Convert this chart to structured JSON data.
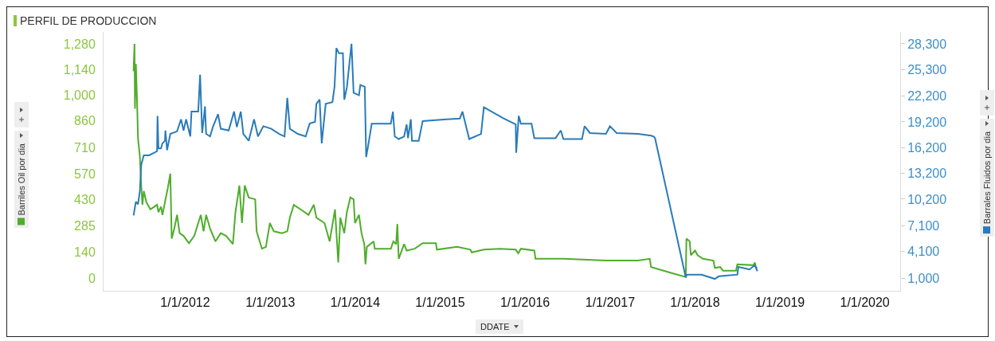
{
  "chart_data": {
    "type": "line",
    "title": "PERFIL DE PRODUCCION",
    "xlabel": "DDATE",
    "ylabel": "Barriles Oil por dia",
    "y2label": "Barrales Fluidos por dia",
    "xlim": [
      "2011-01-15",
      "2020-06-01"
    ],
    "xticks": [
      {
        "value": "2012-01-01",
        "label": "1/1/2012"
      },
      {
        "value": "2013-01-01",
        "label": "1/1/2013"
      },
      {
        "value": "2014-01-01",
        "label": "1/1/2014"
      },
      {
        "value": "2015-01-01",
        "label": "1/1/2015"
      },
      {
        "value": "2016-01-01",
        "label": "1/1/2016"
      },
      {
        "value": "2017-01-01",
        "label": "1/1/2017"
      },
      {
        "value": "2018-01-01",
        "label": "1/1/2018"
      },
      {
        "value": "2019-01-01",
        "label": "1/1/2019"
      },
      {
        "value": "2020-01-01",
        "label": "1/1/2020"
      }
    ],
    "ylim": [
      -70,
      1345
    ],
    "yticks": [
      0,
      140,
      285,
      430,
      570,
      710,
      860,
      {
        "value": 1000,
        "label": "1,000"
      },
      {
        "value": 1140,
        "label": "1,140"
      },
      {
        "value": 1280,
        "label": "1,280"
      }
    ],
    "y2lim": [
      -486,
      29690
    ],
    "y2ticks": [
      {
        "value": 1000,
        "label": "1,000"
      },
      {
        "value": 4100,
        "label": "4,100"
      },
      {
        "value": 7100,
        "label": "7,100"
      },
      {
        "value": 10200,
        "label": "10,200"
      },
      {
        "value": 13200,
        "label": "13,200"
      },
      {
        "value": 16200,
        "label": "16,200"
      },
      {
        "value": 19200,
        "label": "19,200"
      },
      {
        "value": 22200,
        "label": "22,200"
      },
      {
        "value": 25300,
        "label": "25,300"
      },
      {
        "value": 28300,
        "label": "28,300"
      }
    ],
    "series": [
      {
        "color": "#4fad2c",
        "x": [
          "2011-05-24",
          "2011-05-28",
          "2011-05-30",
          "2011-06-03",
          "2011-06-08",
          "2011-06-12",
          "2011-06-20",
          "2011-06-26",
          "2011-07-01",
          "2011-07-07",
          "2011-07-18",
          "2011-08-04",
          "2011-09-02",
          "2011-09-08",
          "2011-09-19",
          "2011-09-25",
          "2011-10-18",
          "2011-10-29",
          "2011-11-04",
          "2011-11-15",
          "2011-11-27",
          "2011-12-08",
          "2011-12-25",
          "2012-01-17",
          "2012-02-09",
          "2012-03-08",
          "2012-03-20",
          "2012-03-31",
          "2012-04-17",
          "2012-05-10",
          "2012-06-02",
          "2012-06-25",
          "2012-07-24",
          "2012-08-04",
          "2012-08-21",
          "2012-09-01",
          "2012-09-13",
          "2012-09-30",
          "2012-10-28",
          "2012-11-03",
          "2012-11-26",
          "2012-12-13",
          "2012-12-30",
          "2013-01-16",
          "2013-02-20",
          "2013-03-15",
          "2013-03-26",
          "2013-04-12",
          "2013-05-11",
          "2013-06-14",
          "2013-07-07",
          "2013-07-18",
          "2013-08-22",
          "2013-09-13",
          "2013-10-06",
          "2013-10-20",
          "2013-10-29",
          "2013-11-15",
          "2013-11-26",
          "2013-12-11",
          "2013-12-25",
          "2013-12-31",
          "2014-01-17",
          "2014-01-28",
          "2014-02-09",
          "2014-02-14",
          "2014-02-20",
          "2014-03-21",
          "2014-03-26",
          "2014-06-03",
          "2014-06-14",
          "2014-06-26",
          "2014-07-01",
          "2014-07-07",
          "2014-07-30",
          "2014-08-10",
          "2014-09-14",
          "2014-10-18",
          "2014-12-14",
          "2014-12-18",
          "2015-03-15",
          "2015-05-11",
          "2015-05-17",
          "2015-07-08",
          "2015-09-14",
          "2015-11-22",
          "2015-12-03",
          "2015-12-14",
          "2016-02-10",
          "2016-02-15",
          "2016-06-14",
          "2016-12-14",
          "2017-04-30",
          "2017-06-20",
          "2017-06-26",
          "2017-09-14",
          "2017-11-22",
          "2017-11-25",
          "2017-12-09",
          "2017-12-14",
          "2018-01-01",
          "2018-01-12",
          "2018-02-04",
          "2018-03-21",
          "2018-03-27",
          "2018-04-19",
          "2018-05-01",
          "2018-06-26",
          "2018-07-02",
          "2018-09-09",
          "2018-09-15",
          "2018-09-20",
          "2018-09-26"
        ],
        "values": [
          1130,
          1280,
          925,
          1170,
          970,
          765,
          665,
          505,
          400,
          475,
          415,
          375,
          400,
          360,
          390,
          345,
          490,
          570,
          215,
          270,
          345,
          245,
          230,
          190,
          230,
          345,
          255,
          345,
          270,
          200,
          245,
          230,
          185,
          360,
          505,
          300,
          505,
          440,
          430,
          255,
          160,
          170,
          300,
          255,
          245,
          255,
          330,
          400,
          375,
          345,
          400,
          330,
          300,
          200,
          375,
          85,
          330,
          245,
          360,
          440,
          430,
          300,
          345,
          245,
          185,
          75,
          170,
          200,
          160,
          160,
          200,
          185,
          295,
          105,
          185,
          150,
          160,
          190,
          190,
          155,
          170,
          155,
          140,
          155,
          160,
          155,
          135,
          160,
          150,
          105,
          105,
          95,
          95,
          105,
          60,
          30,
          5,
          215,
          200,
          125,
          150,
          125,
          105,
          95,
          55,
          60,
          40,
          40,
          75,
          70,
          85,
          55,
          55
        ]
      },
      {
        "color": "#2a7bb9",
        "axis": "y2",
        "x": [
          "2011-05-24",
          "2011-06-03",
          "2011-06-12",
          "2011-06-20",
          "2011-06-26",
          "2011-07-07",
          "2011-07-30",
          "2011-08-21",
          "2011-09-02",
          "2011-09-04",
          "2011-09-08",
          "2011-09-19",
          "2011-09-25",
          "2011-10-06",
          "2011-10-08",
          "2011-10-15",
          "2011-10-29",
          "2011-11-27",
          "2011-12-14",
          "2011-12-25",
          "2012-01-05",
          "2012-01-23",
          "2012-01-28",
          "2012-02-26",
          "2012-03-05",
          "2012-03-14",
          "2012-03-26",
          "2012-03-31",
          "2012-04-17",
          "2012-04-29",
          "2012-05-21",
          "2012-06-02",
          "2012-07-06",
          "2012-07-29",
          "2012-08-10",
          "2012-08-27",
          "2012-09-07",
          "2012-09-30",
          "2012-10-23",
          "2012-11-09",
          "2012-12-02",
          "2013-01-05",
          "2013-02-08",
          "2013-03-03",
          "2013-03-15",
          "2013-03-26",
          "2013-04-29",
          "2013-06-02",
          "2013-06-19",
          "2013-07-12",
          "2013-07-18",
          "2013-08-01",
          "2013-08-10",
          "2013-08-27",
          "2013-09-25",
          "2013-10-04",
          "2013-10-12",
          "2013-10-23",
          "2013-11-09",
          "2013-11-15",
          "2013-11-26",
          "2013-12-16",
          "2013-12-25",
          "2014-01-17",
          "2014-01-23",
          "2014-02-11",
          "2014-02-17",
          "2014-02-26",
          "2014-03-13",
          "2014-06-03",
          "2014-06-12",
          "2014-06-20",
          "2014-07-07",
          "2014-07-30",
          "2014-08-10",
          "2014-08-16",
          "2014-08-28",
          "2014-09-02",
          "2014-10-01",
          "2014-10-18",
          "2015-01-29",
          "2015-03-27",
          "2015-04-07",
          "2015-05-06",
          "2015-06-26",
          "2015-07-08",
          "2015-10-01",
          "2015-11-22",
          "2015-11-24",
          "2015-12-05",
          "2015-12-14",
          "2016-01-29",
          "2016-02-10",
          "2016-05-11",
          "2016-06-03",
          "2016-06-14",
          "2016-09-02",
          "2016-09-13",
          "2016-10-06",
          "2016-12-14",
          "2016-12-31",
          "2017-01-29",
          "2017-04-30",
          "2017-06-26",
          "2017-07-07",
          "2017-07-13",
          "2017-11-22",
          "2017-11-27",
          "2018-01-29",
          "2018-03-27",
          "2018-04-13",
          "2018-07-02",
          "2018-07-06",
          "2018-08-23",
          "2018-09-15",
          "2018-09-26"
        ],
        "values": [
          8300,
          9900,
          9600,
          11100,
          14200,
          15300,
          15300,
          15600,
          15800,
          19900,
          16100,
          16100,
          16700,
          17000,
          18200,
          15900,
          17800,
          18100,
          19500,
          18200,
          19500,
          17500,
          20400,
          20400,
          24700,
          17900,
          21000,
          17800,
          17500,
          18600,
          20100,
          18400,
          18200,
          20400,
          18600,
          20400,
          17800,
          17000,
          19500,
          17500,
          18700,
          18400,
          17800,
          17500,
          22000,
          18400,
          17800,
          17500,
          19000,
          19200,
          21300,
          21800,
          16700,
          21300,
          21500,
          23300,
          27800,
          27200,
          27200,
          21800,
          23200,
          28300,
          22600,
          22300,
          23500,
          23300,
          15100,
          16500,
          19000,
          19000,
          20400,
          17500,
          17200,
          17500,
          18900,
          17300,
          19500,
          17000,
          17000,
          19300,
          19500,
          19600,
          20400,
          17200,
          17800,
          20900,
          19600,
          18900,
          15600,
          19900,
          19000,
          19000,
          17300,
          17300,
          18200,
          17200,
          17200,
          18700,
          17900,
          17800,
          18700,
          17900,
          17800,
          17600,
          17500,
          17300,
          1100,
          1400,
          1400,
          900,
          1200,
          1400,
          2300,
          2000,
          2500,
          1800
        ]
      }
    ]
  }
}
